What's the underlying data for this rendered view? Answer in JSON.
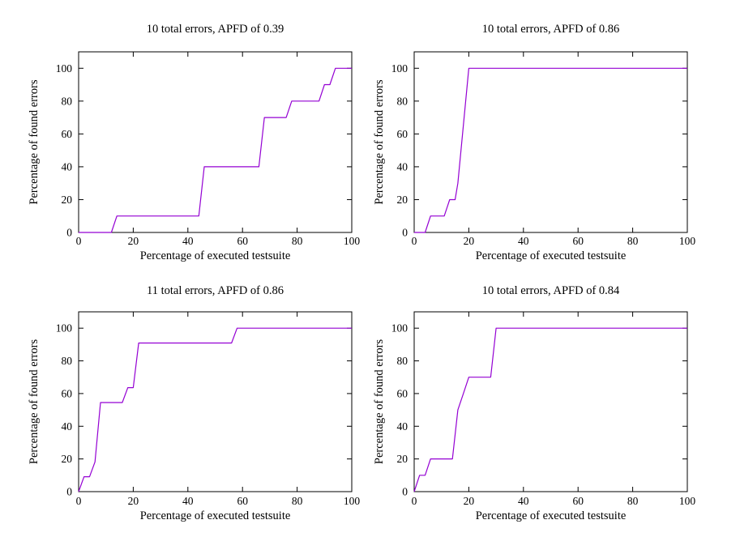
{
  "figure": {
    "background": "#ffffff",
    "axis_color": "#000000",
    "text_color": "#000000",
    "line_color": "#9400d3"
  },
  "chart_data": [
    {
      "type": "line",
      "position": "top-left",
      "title": "10 total errors, APFD of 0.39",
      "xlabel": "Percentage of executed testsuite",
      "ylabel": "Percentage of found errors",
      "xlim": [
        0,
        100
      ],
      "ylim": [
        0,
        110
      ],
      "xticks": [
        0,
        20,
        40,
        60,
        80,
        100
      ],
      "yticks": [
        0,
        20,
        40,
        60,
        80,
        100
      ],
      "grid": false,
      "legend": "none",
      "line_color": "#9400d3",
      "points": [
        [
          0,
          0
        ],
        [
          12,
          0
        ],
        [
          14,
          10
        ],
        [
          44,
          10
        ],
        [
          46,
          40
        ],
        [
          66,
          40
        ],
        [
          68,
          70
        ],
        [
          76,
          70
        ],
        [
          78,
          80
        ],
        [
          88,
          80
        ],
        [
          90,
          90
        ],
        [
          92,
          90
        ],
        [
          94,
          100
        ],
        [
          100,
          100
        ]
      ]
    },
    {
      "type": "line",
      "position": "top-right",
      "title": "10 total errors, APFD of 0.86",
      "xlabel": "Percentage of executed testsuite",
      "ylabel": "Percentage of found errors",
      "xlim": [
        0,
        100
      ],
      "ylim": [
        0,
        110
      ],
      "xticks": [
        0,
        20,
        40,
        60,
        80,
        100
      ],
      "yticks": [
        0,
        20,
        40,
        60,
        80,
        100
      ],
      "grid": false,
      "legend": "none",
      "line_color": "#9400d3",
      "points": [
        [
          0,
          0
        ],
        [
          4,
          0
        ],
        [
          6,
          10
        ],
        [
          11,
          10
        ],
        [
          13,
          20
        ],
        [
          15,
          20
        ],
        [
          16,
          30
        ],
        [
          20,
          100
        ],
        [
          100,
          100
        ]
      ]
    },
    {
      "type": "line",
      "position": "bottom-left",
      "title": "11 total errors, APFD of 0.86",
      "xlabel": "Percentage of executed testsuite",
      "ylabel": "Percentage of found errors",
      "xlim": [
        0,
        100
      ],
      "ylim": [
        0,
        110
      ],
      "xticks": [
        0,
        20,
        40,
        60,
        80,
        100
      ],
      "yticks": [
        0,
        20,
        40,
        60,
        80,
        100
      ],
      "grid": false,
      "legend": "none",
      "line_color": "#9400d3",
      "points": [
        [
          0,
          0
        ],
        [
          2,
          9.1
        ],
        [
          4,
          9.1
        ],
        [
          6,
          18.2
        ],
        [
          8,
          54.5
        ],
        [
          16,
          54.5
        ],
        [
          18,
          63.6
        ],
        [
          20,
          63.6
        ],
        [
          22,
          90.9
        ],
        [
          56,
          90.9
        ],
        [
          58,
          100
        ],
        [
          100,
          100
        ]
      ]
    },
    {
      "type": "line",
      "position": "bottom-right",
      "title": "10 total errors, APFD of 0.84",
      "xlabel": "Percentage of executed testsuite",
      "ylabel": "Percentage of found errors",
      "xlim": [
        0,
        100
      ],
      "ylim": [
        0,
        110
      ],
      "xticks": [
        0,
        20,
        40,
        60,
        80,
        100
      ],
      "yticks": [
        0,
        20,
        40,
        60,
        80,
        100
      ],
      "grid": false,
      "legend": "none",
      "line_color": "#9400d3",
      "points": [
        [
          0,
          0
        ],
        [
          2,
          10
        ],
        [
          4,
          10
        ],
        [
          6,
          20
        ],
        [
          14,
          20
        ],
        [
          16,
          50
        ],
        [
          18,
          60
        ],
        [
          20,
          70
        ],
        [
          28,
          70
        ],
        [
          30,
          100
        ],
        [
          100,
          100
        ]
      ]
    }
  ]
}
